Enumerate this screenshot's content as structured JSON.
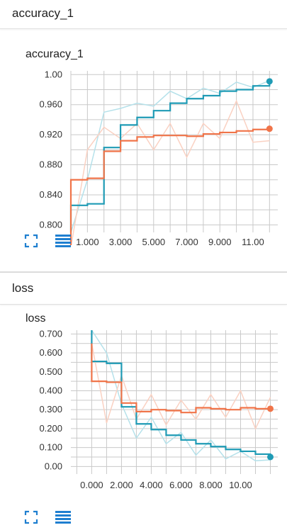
{
  "sections": [
    {
      "header": "accuracy_1",
      "card_title": "accuracy_1"
    },
    {
      "header": "loss",
      "card_title": "loss"
    }
  ],
  "colors": {
    "blue": "#1f9bb5",
    "orange": "#f07449",
    "blue_light": "#b5e1ea",
    "orange_light": "#fad1c2",
    "grid": "#c9c9c9"
  },
  "icons": {
    "expand": "fullscreen-icon",
    "data": "list-lines-icon"
  },
  "chart_data": [
    {
      "type": "line",
      "title": "accuracy_1",
      "xticks": [
        "1.000",
        "3.000",
        "5.000",
        "7.000",
        "9.000",
        "11.00"
      ],
      "yticks": [
        "1.00",
        "0.960",
        "0.920",
        "0.880",
        "0.840",
        "0.800"
      ],
      "xlim": [
        0,
        12
      ],
      "ylim": [
        0.79,
        1.005
      ],
      "series": [
        {
          "color": "#1f9bb5",
          "x": [
            0,
            1,
            2,
            3,
            4,
            5,
            6,
            7,
            8,
            9,
            10,
            11,
            12
          ],
          "values": [
            0.826,
            0.828,
            0.903,
            0.933,
            0.943,
            0.952,
            0.962,
            0.968,
            0.972,
            0.978,
            0.98,
            0.985,
            0.991
          ],
          "raw": [
            0.79,
            0.86,
            0.95,
            0.955,
            0.962,
            0.958,
            0.978,
            0.968,
            0.982,
            0.975,
            0.99,
            0.983,
            0.992
          ]
        },
        {
          "color": "#f07449",
          "x": [
            0,
            1,
            2,
            3,
            4,
            5,
            6,
            7,
            8,
            9,
            10,
            11,
            12
          ],
          "values": [
            0.86,
            0.862,
            0.898,
            0.912,
            0.917,
            0.919,
            0.919,
            0.918,
            0.921,
            0.923,
            0.925,
            0.927,
            0.928
          ],
          "raw": [
            0.77,
            0.9,
            0.93,
            0.915,
            0.935,
            0.9,
            0.935,
            0.89,
            0.935,
            0.915,
            0.965,
            0.91,
            0.912
          ]
        }
      ]
    },
    {
      "type": "line",
      "title": "loss",
      "xticks": [
        "0.000",
        "2.000",
        "4.000",
        "6.000",
        "8.000",
        "10.00"
      ],
      "yticks": [
        "0.700",
        "0.600",
        "0.500",
        "0.400",
        "0.300",
        "0.200",
        "0.100",
        "0.00"
      ],
      "xlim": [
        0,
        12
      ],
      "ylim": [
        -0.04,
        0.72
      ],
      "series": [
        {
          "color": "#1f9bb5",
          "x": [
            0,
            1,
            2,
            3,
            4,
            5,
            6,
            7,
            8,
            9,
            10,
            11,
            12
          ],
          "values": [
            0.555,
            0.545,
            0.315,
            0.225,
            0.195,
            0.165,
            0.14,
            0.12,
            0.105,
            0.09,
            0.08,
            0.065,
            0.05
          ],
          "raw": [
            0.72,
            0.6,
            0.33,
            0.15,
            0.26,
            0.12,
            0.18,
            0.06,
            0.14,
            0.04,
            0.08,
            0.03,
            0.035
          ]
        },
        {
          "color": "#f07449",
          "x": [
            0,
            1,
            2,
            3,
            4,
            5,
            6,
            7,
            8,
            9,
            10,
            11,
            12
          ],
          "values": [
            0.45,
            0.445,
            0.335,
            0.29,
            0.3,
            0.295,
            0.285,
            0.31,
            0.305,
            0.3,
            0.31,
            0.305,
            0.305
          ],
          "raw": [
            0.65,
            0.23,
            0.48,
            0.25,
            0.38,
            0.22,
            0.35,
            0.25,
            0.38,
            0.26,
            0.4,
            0.2,
            0.365
          ]
        }
      ]
    }
  ]
}
